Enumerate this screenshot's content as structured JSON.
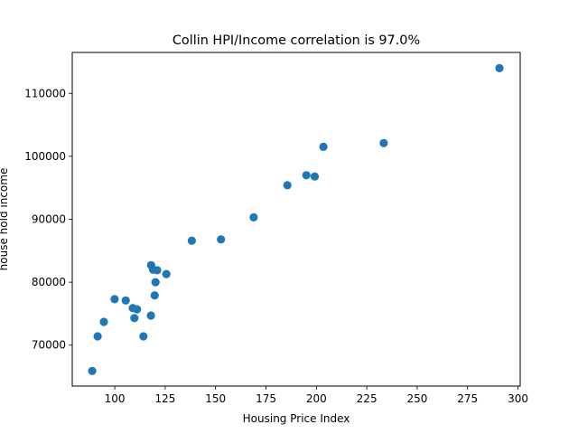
{
  "chart_data": {
    "type": "scatter",
    "title": "Collin HPI/Income correlation  is 97.0%",
    "xlabel": "Housing Price Index",
    "ylabel": "house hold income",
    "xlim": [
      78.9,
      301.1
    ],
    "ylim": [
      63500,
      116500
    ],
    "xticks": [
      100,
      125,
      150,
      175,
      200,
      225,
      250,
      275,
      300
    ],
    "yticks": [
      70000,
      80000,
      90000,
      100000,
      110000
    ],
    "xtick_labels": [
      "100",
      "125",
      "150",
      "175",
      "200",
      "225",
      "250",
      "275",
      "300"
    ],
    "ytick_labels": [
      "70000",
      "80000",
      "90000",
      "100000",
      "110000"
    ],
    "grid": false,
    "marker_color": "#1f77b4",
    "x": [
      88.8,
      91.5,
      94.6,
      99.9,
      105.4,
      108.9,
      109.7,
      111.0,
      114.2,
      117.9,
      118.0,
      119.0,
      119.8,
      120.2,
      121.0,
      125.6,
      138.2,
      152.7,
      168.9,
      185.6,
      195.0,
      199.2,
      203.5,
      233.4,
      290.8
    ],
    "y": [
      65900,
      71400,
      73700,
      77300,
      77100,
      75900,
      74300,
      75700,
      71400,
      74700,
      82700,
      82000,
      77900,
      80000,
      81900,
      81300,
      86600,
      86800,
      90300,
      95400,
      97000,
      96800,
      101500,
      102100,
      114000
    ]
  }
}
